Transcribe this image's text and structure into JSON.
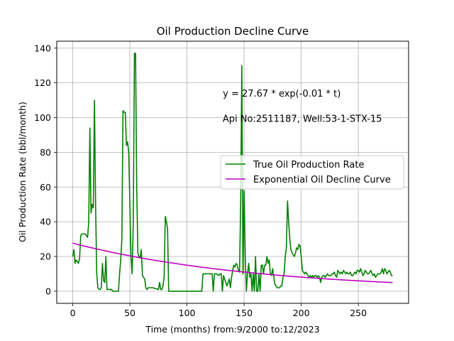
{
  "chart_data": {
    "type": "line",
    "title": "Oil Production Decline Curve",
    "xlabel": "Time (months) from:9/2000 to:12/2023",
    "ylabel": "Oil Production Rate (bbl/month)",
    "xlim": [
      -14,
      294
    ],
    "ylim": [
      -7,
      144
    ],
    "xticks": [
      0,
      50,
      100,
      150,
      200,
      250
    ],
    "yticks": [
      0,
      20,
      40,
      60,
      80,
      100,
      120,
      140
    ],
    "grid": true,
    "legend_position": "center-right",
    "annotations": [
      {
        "text": "y = 27.67 * exp(-0.01 * t)",
        "x": 183,
        "y": 112
      },
      {
        "text": "Api No:2511187, Well:53-1-STX-15",
        "x": 201,
        "y": 97.5
      }
    ],
    "series": [
      {
        "name": "True Oil Production Rate",
        "color": "#008000",
        "points": [
          [
            0,
            20
          ],
          [
            1,
            24
          ],
          [
            2,
            16
          ],
          [
            3,
            18
          ],
          [
            4,
            17
          ],
          [
            5,
            16
          ],
          [
            6,
            19
          ],
          [
            7,
            32
          ],
          [
            8,
            33
          ],
          [
            9,
            33
          ],
          [
            10,
            33
          ],
          [
            11,
            33
          ],
          [
            12,
            32
          ],
          [
            13,
            31
          ],
          [
            14,
            40
          ],
          [
            15,
            94
          ],
          [
            16,
            45
          ],
          [
            17,
            50
          ],
          [
            18,
            48
          ],
          [
            19,
            110
          ],
          [
            20,
            50
          ],
          [
            21,
            10
          ],
          [
            22,
            2
          ],
          [
            23,
            1
          ],
          [
            24,
            1
          ],
          [
            25,
            2
          ],
          [
            26,
            16
          ],
          [
            27,
            6
          ],
          [
            28,
            5
          ],
          [
            29,
            20
          ],
          [
            30,
            1
          ],
          [
            31,
            1
          ],
          [
            32,
            1
          ],
          [
            33,
            1
          ],
          [
            34,
            1
          ],
          [
            35,
            0
          ],
          [
            36,
            0
          ],
          [
            40,
            0
          ],
          [
            41,
            10
          ],
          [
            42,
            18
          ],
          [
            43,
            30
          ],
          [
            44,
            104
          ],
          [
            45,
            103
          ],
          [
            46,
            103
          ],
          [
            47,
            84
          ],
          [
            48,
            86
          ],
          [
            49,
            80
          ],
          [
            50,
            50
          ],
          [
            51,
            20
          ],
          [
            52,
            10
          ],
          [
            53,
            40
          ],
          [
            54,
            137
          ],
          [
            55,
            137
          ],
          [
            56,
            60
          ],
          [
            57,
            22
          ],
          [
            58,
            20
          ],
          [
            59,
            19
          ],
          [
            60,
            24
          ],
          [
            61,
            9
          ],
          [
            62,
            8
          ],
          [
            63,
            7
          ],
          [
            64,
            2
          ],
          [
            65,
            1
          ],
          [
            66,
            2
          ],
          [
            70,
            2
          ],
          [
            75,
            1
          ],
          [
            76,
            5
          ],
          [
            77,
            1
          ],
          [
            78,
            1
          ],
          [
            79,
            3
          ],
          [
            80,
            8
          ],
          [
            81,
            43
          ],
          [
            82,
            40
          ],
          [
            83,
            36
          ],
          [
            84,
            0
          ],
          [
            90,
            0
          ],
          [
            100,
            0
          ],
          [
            110,
            0
          ],
          [
            113,
            0
          ],
          [
            114,
            10
          ],
          [
            120,
            10
          ],
          [
            122,
            10
          ],
          [
            123,
            0
          ],
          [
            124,
            10
          ],
          [
            126,
            10
          ],
          [
            128,
            9
          ],
          [
            129,
            10
          ],
          [
            130,
            10
          ],
          [
            131,
            0
          ],
          [
            132,
            9
          ],
          [
            135,
            3
          ],
          [
            136,
            5
          ],
          [
            137,
            7
          ],
          [
            138,
            2
          ],
          [
            139,
            8
          ],
          [
            140,
            12
          ],
          [
            141,
            15
          ],
          [
            142,
            14
          ],
          [
            143,
            16
          ],
          [
            144,
            15
          ],
          [
            145,
            12
          ],
          [
            146,
            11
          ],
          [
            147,
            50
          ],
          [
            148,
            130
          ],
          [
            149,
            10
          ],
          [
            150,
            58
          ],
          [
            151,
            20
          ],
          [
            152,
            0
          ],
          [
            153,
            10
          ],
          [
            154,
            16
          ],
          [
            155,
            8
          ],
          [
            156,
            10
          ],
          [
            157,
            0
          ],
          [
            158,
            10
          ],
          [
            159,
            0
          ],
          [
            160,
            20
          ],
          [
            161,
            0
          ],
          [
            162,
            0
          ],
          [
            163,
            10
          ],
          [
            164,
            0
          ],
          [
            165,
            15
          ],
          [
            166,
            15
          ],
          [
            167,
            10
          ],
          [
            168,
            15
          ],
          [
            169,
            15
          ],
          [
            170,
            20
          ],
          [
            171,
            16
          ],
          [
            172,
            18
          ],
          [
            173,
            10
          ],
          [
            174,
            9
          ],
          [
            175,
            13
          ],
          [
            176,
            8
          ],
          [
            177,
            4
          ],
          [
            178,
            3
          ],
          [
            179,
            2
          ],
          [
            180,
            2
          ],
          [
            181,
            2
          ],
          [
            182,
            3
          ],
          [
            183,
            3
          ],
          [
            184,
            8
          ],
          [
            185,
            10
          ],
          [
            186,
            20
          ],
          [
            187,
            25
          ],
          [
            188,
            52
          ],
          [
            189,
            40
          ],
          [
            190,
            30
          ],
          [
            191,
            24
          ],
          [
            192,
            22
          ],
          [
            193,
            21
          ],
          [
            194,
            20
          ],
          [
            195,
            22
          ],
          [
            196,
            25
          ],
          [
            197,
            24
          ],
          [
            198,
            27
          ],
          [
            199,
            26
          ],
          [
            200,
            20
          ],
          [
            201,
            12
          ],
          [
            202,
            11
          ],
          [
            203,
            10
          ],
          [
            204,
            11
          ],
          [
            205,
            10
          ],
          [
            206,
            9
          ],
          [
            207,
            8
          ],
          [
            208,
            9
          ],
          [
            209,
            8
          ],
          [
            210,
            9
          ],
          [
            211,
            8
          ],
          [
            212,
            9
          ],
          [
            213,
            9
          ],
          [
            214,
            8
          ],
          [
            215,
            9
          ],
          [
            216,
            8
          ],
          [
            217,
            5
          ],
          [
            218,
            8
          ],
          [
            219,
            9
          ],
          [
            220,
            9
          ],
          [
            221,
            8
          ],
          [
            222,
            9
          ],
          [
            223,
            10
          ],
          [
            224,
            9
          ],
          [
            225,
            9
          ],
          [
            226,
            9
          ],
          [
            227,
            10
          ],
          [
            228,
            10
          ],
          [
            229,
            11
          ],
          [
            230,
            9
          ],
          [
            231,
            8
          ],
          [
            232,
            12
          ],
          [
            233,
            11
          ],
          [
            234,
            10
          ],
          [
            235,
            11
          ],
          [
            236,
            10
          ],
          [
            237,
            12
          ],
          [
            238,
            11
          ],
          [
            239,
            10
          ],
          [
            240,
            11
          ],
          [
            241,
            10
          ],
          [
            242,
            10
          ],
          [
            243,
            11
          ],
          [
            244,
            9
          ],
          [
            245,
            9
          ],
          [
            246,
            10
          ],
          [
            247,
            11
          ],
          [
            248,
            10
          ],
          [
            249,
            12
          ],
          [
            250,
            12
          ],
          [
            251,
            11
          ],
          [
            252,
            13
          ],
          [
            253,
            11
          ],
          [
            254,
            9
          ],
          [
            255,
            10
          ],
          [
            256,
            12
          ],
          [
            257,
            11
          ],
          [
            258,
            10
          ],
          [
            259,
            10
          ],
          [
            260,
            11
          ],
          [
            261,
            12
          ],
          [
            262,
            10
          ],
          [
            263,
            9
          ],
          [
            264,
            10
          ],
          [
            265,
            8
          ],
          [
            266,
            9
          ],
          [
            267,
            10
          ],
          [
            268,
            10
          ],
          [
            269,
            10
          ],
          [
            270,
            11
          ],
          [
            271,
            13
          ],
          [
            272,
            10
          ],
          [
            273,
            13
          ],
          [
            274,
            12
          ],
          [
            275,
            10
          ],
          [
            276,
            11
          ],
          [
            277,
            12
          ],
          [
            278,
            11
          ],
          [
            279,
            9
          ],
          [
            280,
            9
          ]
        ]
      },
      {
        "name": "Exponential Oil Decline Curve",
        "color": "#bf00bf",
        "formula": {
          "a": 27.67,
          "b": -0.00613,
          "t_start": 0,
          "t_end": 280
        }
      }
    ]
  }
}
